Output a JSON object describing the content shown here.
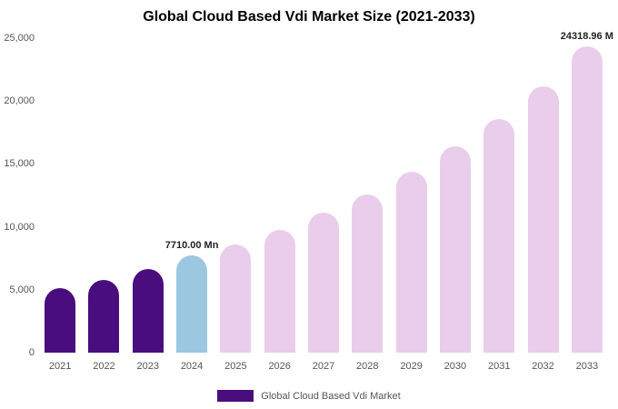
{
  "chart_data": {
    "type": "bar",
    "title": "Global Cloud Based Vdi Market Size (2021-2033)",
    "categories": [
      "2021",
      "2022",
      "2023",
      "2024",
      "2025",
      "2026",
      "2027",
      "2028",
      "2029",
      "2030",
      "2031",
      "2032",
      "2033"
    ],
    "values": [
      5100,
      5800,
      6650,
      7710,
      8600,
      9750,
      11100,
      12600,
      14350,
      16400,
      18600,
      21150,
      24318.96
    ],
    "colors": [
      "#4a0d7e",
      "#4a0d7e",
      "#4a0d7e",
      "#9cc7e1",
      "#e9cdeb",
      "#e9cdeb",
      "#e9cdeb",
      "#e9cdeb",
      "#e9cdeb",
      "#e9cdeb",
      "#e9cdeb",
      "#e9cdeb",
      "#e9cdeb"
    ],
    "annotations": [
      {
        "category": "2024",
        "text": "7710.00 Mn"
      },
      {
        "category": "2033",
        "text": "24318.96 M"
      }
    ],
    "yticks": [
      {
        "label": "0",
        "value": 0
      },
      {
        "label": "5,000",
        "value": 5000
      },
      {
        "label": "10,000",
        "value": 10000
      },
      {
        "label": "15,000",
        "value": 15000
      },
      {
        "label": "20,000",
        "value": 20000
      },
      {
        "label": "25,000",
        "value": 25000
      }
    ],
    "xlabel": "",
    "ylabel": "",
    "ylim": [
      0,
      25000
    ],
    "grid": false,
    "legend": {
      "position": "bottom",
      "entries": [
        {
          "label": "Global Cloud Based Vdi Market",
          "color": "#4a0d7e"
        }
      ]
    }
  }
}
